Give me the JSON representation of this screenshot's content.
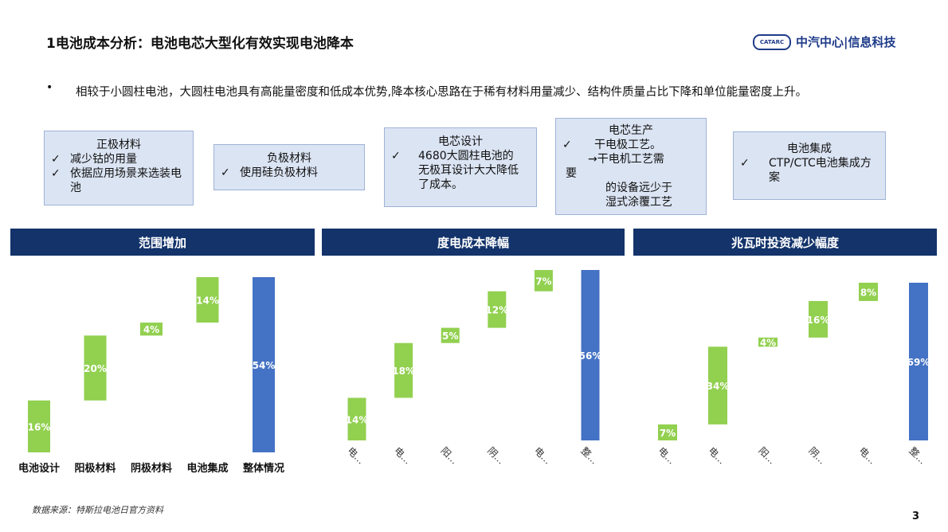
{
  "header": {
    "title": "1电池成本分析：电池电芯大型化有效实现电池降本",
    "logo_mark": "CATARC",
    "logo_text": "中汽中心|信息科技"
  },
  "intro": {
    "bullet": "•",
    "text": "相较于小圆柱电池，大圆柱电池具有高能量密度和低成本优势,降本核心思路在于稀有材料用量减少、结构件质量占比下降和单位能量密度上升。"
  },
  "boxes": {
    "b1": {
      "title": "正极材料",
      "items": [
        "减少钴的用量",
        "依据应用场景来选装电池"
      ]
    },
    "b2": {
      "title": "负极材料",
      "items": [
        "使用硅负极材料"
      ]
    },
    "b3": {
      "title": "电芯设计",
      "items": [
        "4680大圆柱电池的无极耳设计大大降低了成本。"
      ]
    },
    "b4": {
      "title": "电芯生产",
      "line1": "干电极工艺。",
      "line2": "→干电机工艺需",
      "line3": "要",
      "line4": "的设备远少于",
      "line5": "湿式涂覆工艺"
    },
    "b5": {
      "title": "电池集成",
      "items": [
        "CTP/CTC电池集成方案"
      ]
    },
    "check": "✓"
  },
  "panels": {
    "p1": "范围增加",
    "p2": "度电成本降幅",
    "p3": "兆瓦时投资减少幅度"
  },
  "colors": {
    "green": "#92d050",
    "blue": "#4472c4",
    "navy": "#13336a",
    "box": "#dbe4f3"
  },
  "chart_data": [
    {
      "type": "bar",
      "subtype": "waterfall",
      "title": "范围增加",
      "categories": [
        "电池设计",
        "阳极材料",
        "阴极材料",
        "电池集成",
        "整体情况"
      ],
      "values": [
        16,
        20,
        4,
        14,
        54
      ],
      "labels": [
        "16%",
        "20%",
        "4%",
        "14%",
        "54%"
      ],
      "total_index": 4
    },
    {
      "type": "bar",
      "subtype": "waterfall",
      "title": "度电成本降幅",
      "categories": [
        "电…",
        "电…",
        "阳…",
        "阴…",
        "电…",
        "整…"
      ],
      "values": [
        14,
        18,
        5,
        12,
        7,
        56
      ],
      "labels": [
        "14%",
        "18%",
        "5%",
        "12%",
        "7%",
        "56%"
      ],
      "total_index": 5
    },
    {
      "type": "bar",
      "subtype": "waterfall",
      "title": "兆瓦时投资减少幅度",
      "categories": [
        "电…",
        "电…",
        "阳…",
        "阴…",
        "电…",
        "整…"
      ],
      "values": [
        7,
        34,
        4,
        16,
        8,
        69
      ],
      "labels": [
        "7%",
        "34%",
        "4%",
        "16%",
        "8%",
        "69%"
      ],
      "total_index": 5
    }
  ],
  "footer": {
    "source": "数据来源：特斯拉电池日官方资料",
    "page": "3"
  }
}
